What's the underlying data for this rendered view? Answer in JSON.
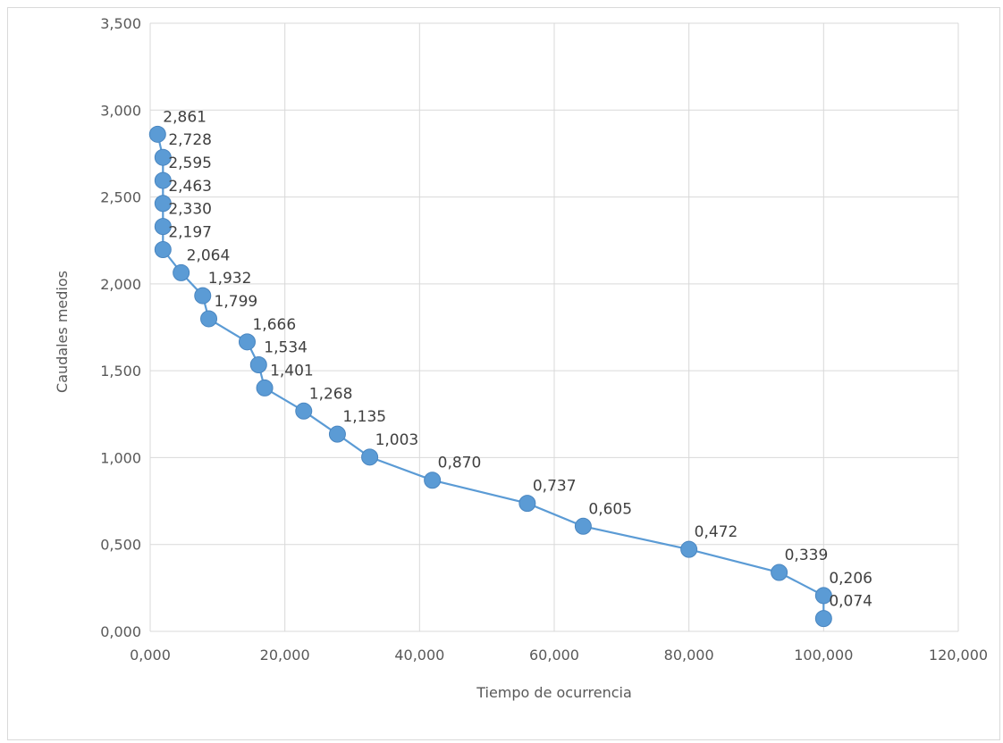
{
  "chart_data": {
    "type": "scatter",
    "title": "",
    "xlabel": "Tiempo de ocurrencia",
    "ylabel": "Caudales medios",
    "xlim": [
      0,
      120
    ],
    "ylim": [
      0,
      3.5
    ],
    "x_ticks": [
      0,
      20,
      40,
      60,
      80,
      100,
      120
    ],
    "x_tick_labels": [
      "0,000",
      "20,000",
      "40,000",
      "60,000",
      "80,000",
      "100,000",
      "120,000"
    ],
    "y_ticks": [
      0,
      0.5,
      1,
      1.5,
      2,
      2.5,
      3,
      3.5
    ],
    "y_tick_labels": [
      "0,000",
      "0,500",
      "1,000",
      "1,500",
      "2,000",
      "2,500",
      "3,000",
      "3,500"
    ],
    "grid": true,
    "legend": "none",
    "series_color": "#5b9bd5",
    "marker_color": "#5b9bd5",
    "points": [
      {
        "x": 1.1,
        "y": 2.861,
        "label": "2,861"
      },
      {
        "x": 1.9,
        "y": 2.728,
        "label": "2,728"
      },
      {
        "x": 1.9,
        "y": 2.595,
        "label": "2,595"
      },
      {
        "x": 1.9,
        "y": 2.463,
        "label": "2,463"
      },
      {
        "x": 1.9,
        "y": 2.33,
        "label": "2,330"
      },
      {
        "x": 1.9,
        "y": 2.197,
        "label": "2,197"
      },
      {
        "x": 4.6,
        "y": 2.064,
        "label": "2,064"
      },
      {
        "x": 7.8,
        "y": 1.932,
        "label": "1,932"
      },
      {
        "x": 8.7,
        "y": 1.799,
        "label": "1,799"
      },
      {
        "x": 14.4,
        "y": 1.666,
        "label": "1,666"
      },
      {
        "x": 16.1,
        "y": 1.534,
        "label": "1,534"
      },
      {
        "x": 17.0,
        "y": 1.401,
        "label": "1,401"
      },
      {
        "x": 22.8,
        "y": 1.268,
        "label": "1,268"
      },
      {
        "x": 27.8,
        "y": 1.135,
        "label": "1,135"
      },
      {
        "x": 32.6,
        "y": 1.003,
        "label": "1,003"
      },
      {
        "x": 41.9,
        "y": 0.87,
        "label": "0,870"
      },
      {
        "x": 56.0,
        "y": 0.737,
        "label": "0,737"
      },
      {
        "x": 64.3,
        "y": 0.605,
        "label": "0,605"
      },
      {
        "x": 80.0,
        "y": 0.472,
        "label": "0,472"
      },
      {
        "x": 93.4,
        "y": 0.339,
        "label": "0,339"
      },
      {
        "x": 100.0,
        "y": 0.206,
        "label": "0,206"
      },
      {
        "x": 100.0,
        "y": 0.074,
        "label": "0,074"
      }
    ]
  }
}
